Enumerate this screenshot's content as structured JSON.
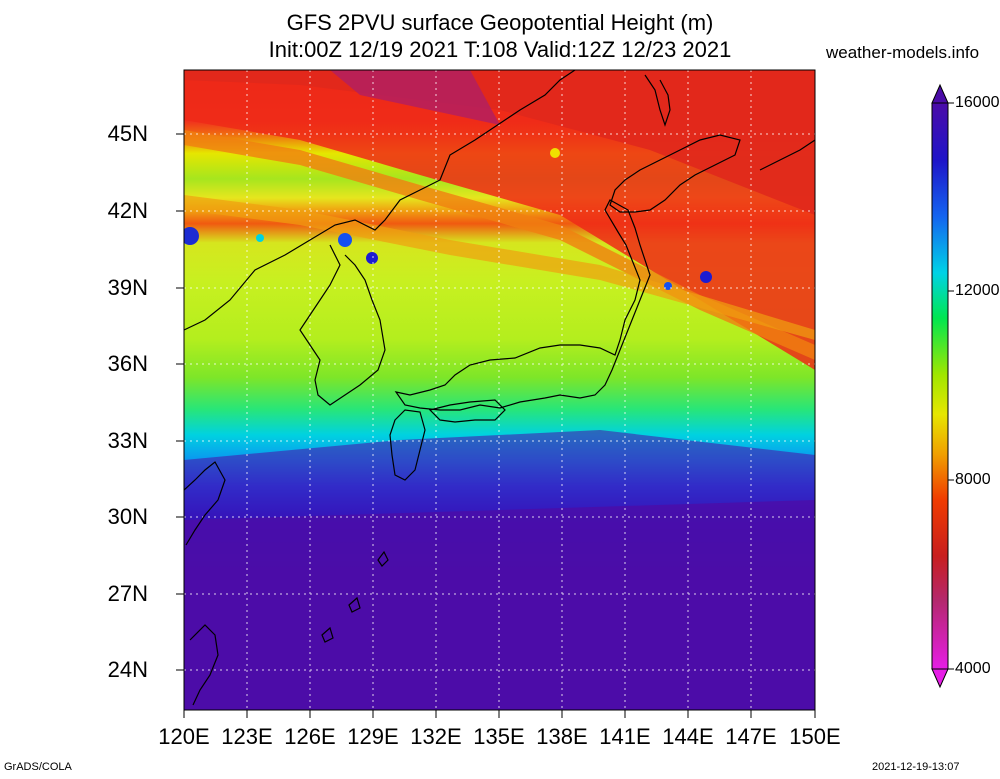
{
  "title": {
    "line1": "GFS 2PVU surface Geopotential Height (m)",
    "line2": "Init:00Z 12/19 2021 T:108 Valid:12Z 12/23 2021"
  },
  "site": "weather-models.info",
  "axes": {
    "y_ticks": [
      "45N",
      "42N",
      "39N",
      "36N",
      "33N",
      "30N",
      "27N",
      "24N"
    ],
    "x_ticks": [
      "120E",
      "123E",
      "126E",
      "129E",
      "132E",
      "135E",
      "138E",
      "141E",
      "144E",
      "147E",
      "150E"
    ]
  },
  "colorbar": {
    "labels": [
      "16000",
      "12000",
      "8000",
      "4000"
    ],
    "colors": [
      "#7d0a8c",
      "#4b0ca8",
      "#1f14c8",
      "#1536f0",
      "#1464f0",
      "#0a9af0",
      "#00d2e6",
      "#00e6a0",
      "#00e632",
      "#50e600",
      "#a0e600",
      "#e6e600",
      "#f0b400",
      "#f08200",
      "#f05000",
      "#f01e00",
      "#c81e1e",
      "#b41e50",
      "#c8288c",
      "#e61ee6"
    ]
  },
  "chart_data": {
    "type": "heatmap",
    "title": "GFS 2PVU surface Geopotential Height (m)",
    "subtitle": "Init:00Z 12/19 2021 T:108 Valid:12Z 12/23 2021",
    "variable": "2PVU surface geopotential height",
    "units": "m",
    "lon_range": [
      120,
      150
    ],
    "lat_range": [
      22.5,
      47.5
    ],
    "colorbar_range": [
      4000,
      16000
    ],
    "pattern": [
      {
        "latitude": 46,
        "height_m": 6500
      },
      {
        "latitude": 44,
        "height_m": 7500
      },
      {
        "latitude": 42,
        "height_m": 8000
      },
      {
        "latitude": 39,
        "height_m": 9800
      },
      {
        "latitude": 36,
        "height_m": 10500
      },
      {
        "latitude": 34,
        "height_m": 12500
      },
      {
        "latitude": 32,
        "height_m": 14500
      },
      {
        "latitude": 28,
        "height_m": 16000
      },
      {
        "latitude": 24,
        "height_m": 16000
      }
    ]
  },
  "footer": {
    "left": "GrADS/COLA",
    "right": "2021-12-19-13:07"
  }
}
